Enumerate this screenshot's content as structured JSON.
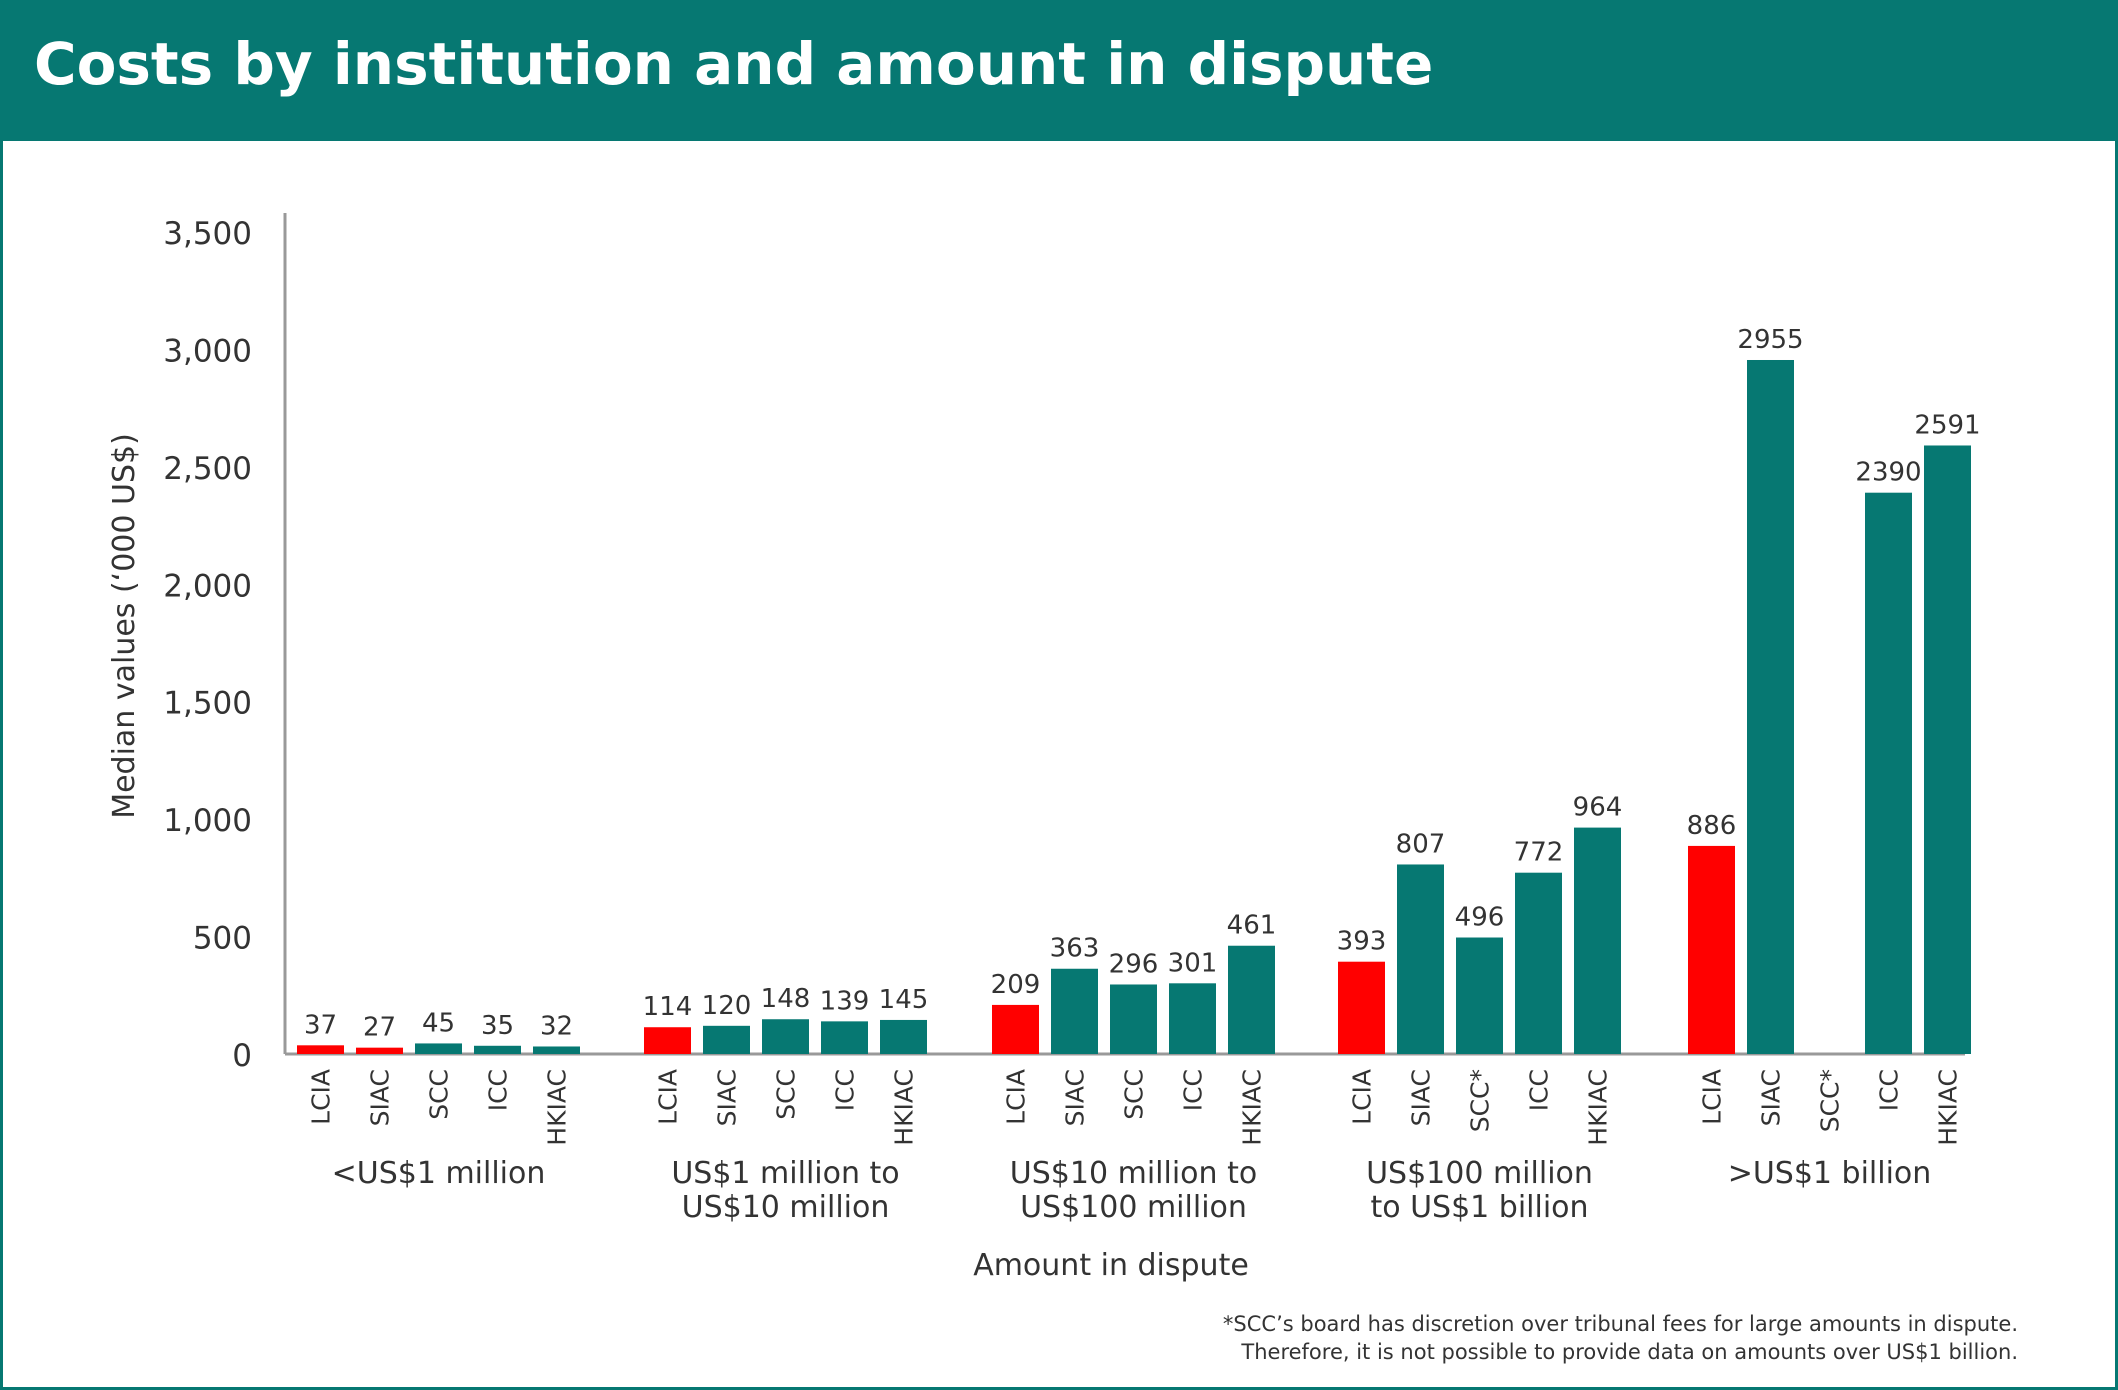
{
  "header": {
    "title": "Costs by institution and amount in dispute"
  },
  "colors": {
    "brand": "#067872",
    "highlight": "#ff0000",
    "axis": "#999999",
    "text": "#333333"
  },
  "footnote": {
    "line1": "*SCC’s board has discretion over tribunal fees for large amounts in dispute.",
    "line2": "Therefore, it is not possible to provide data on amounts over US$1 billion."
  },
  "chart_data": {
    "type": "bar",
    "title": "Costs by institution and amount in dispute",
    "xlabel": "Amount in dispute",
    "ylabel": "Median values (‘000 US$)",
    "ylim": [
      0,
      3500
    ],
    "yticks": [
      0,
      500,
      1000,
      1500,
      2000,
      2500,
      3000,
      3500
    ],
    "ytick_labels": [
      "0",
      "500",
      "1,000",
      "1,500",
      "2,000",
      "2,500",
      "3,000",
      "3,500"
    ],
    "grid": false,
    "legend": "none",
    "groups": [
      {
        "label_lines": [
          "<US$1 million"
        ],
        "bars": [
          {
            "institution": "LCIA",
            "value": 37,
            "label": "37",
            "highlight": true
          },
          {
            "institution": "SIAC",
            "value": 27,
            "label": "27",
            "highlight": true
          },
          {
            "institution": "SCC",
            "value": 45,
            "label": "45",
            "highlight": false
          },
          {
            "institution": "ICC",
            "value": 35,
            "label": "35",
            "highlight": false
          },
          {
            "institution": "HKIAC",
            "value": 32,
            "label": "32",
            "highlight": false
          }
        ]
      },
      {
        "label_lines": [
          "US$1 million to",
          "US$10 million"
        ],
        "bars": [
          {
            "institution": "LCIA",
            "value": 114,
            "label": "114",
            "highlight": true
          },
          {
            "institution": "SIAC",
            "value": 120,
            "label": "120",
            "highlight": false
          },
          {
            "institution": "SCC",
            "value": 148,
            "label": "148",
            "highlight": false
          },
          {
            "institution": "ICC",
            "value": 139,
            "label": "139",
            "highlight": false
          },
          {
            "institution": "HKIAC",
            "value": 145,
            "label": "145",
            "highlight": false
          }
        ]
      },
      {
        "label_lines": [
          "US$10 million to",
          "US$100 million"
        ],
        "bars": [
          {
            "institution": "LCIA",
            "value": 209,
            "label": "209",
            "highlight": true
          },
          {
            "institution": "SIAC",
            "value": 363,
            "label": "363",
            "highlight": false
          },
          {
            "institution": "SCC",
            "value": 296,
            "label": "296",
            "highlight": false
          },
          {
            "institution": "ICC",
            "value": 301,
            "label": "301",
            "highlight": false
          },
          {
            "institution": "HKIAC",
            "value": 461,
            "label": "461",
            "highlight": false
          }
        ]
      },
      {
        "label_lines": [
          "US$100 million",
          "to US$1 billion"
        ],
        "bars": [
          {
            "institution": "LCIA",
            "value": 393,
            "label": "393",
            "highlight": true
          },
          {
            "institution": "SIAC",
            "value": 807,
            "label": "807",
            "highlight": false
          },
          {
            "institution": "SCC*",
            "value": 496,
            "label": "496",
            "highlight": false
          },
          {
            "institution": "ICC",
            "value": 772,
            "label": "772",
            "highlight": false
          },
          {
            "institution": "HKIAC",
            "value": 964,
            "label": "964",
            "highlight": false
          }
        ]
      },
      {
        "label_lines": [
          ">US$1 billion"
        ],
        "bars": [
          {
            "institution": "LCIA",
            "value": 886,
            "label": "886",
            "highlight": true
          },
          {
            "institution": "SIAC",
            "value": 2955,
            "label": "2955",
            "highlight": false
          },
          {
            "institution": "SCC*",
            "value": null,
            "label": "",
            "highlight": false
          },
          {
            "institution": "ICC",
            "value": 2390,
            "label": "2390",
            "highlight": false
          },
          {
            "institution": "HKIAC",
            "value": 2591,
            "label": "2591",
            "highlight": false
          }
        ]
      }
    ]
  }
}
